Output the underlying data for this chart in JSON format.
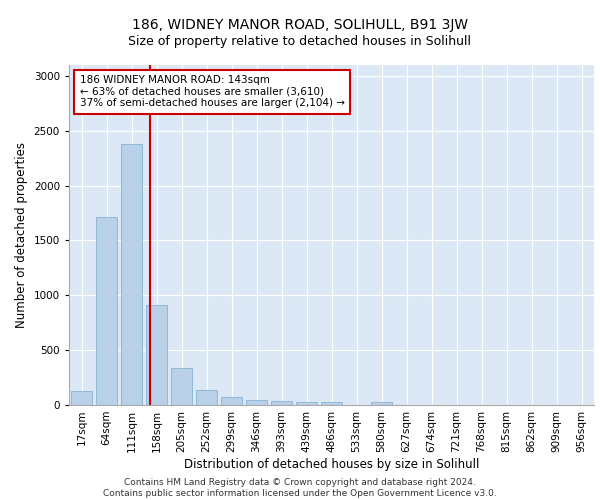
{
  "title1": "186, WIDNEY MANOR ROAD, SOLIHULL, B91 3JW",
  "title2": "Size of property relative to detached houses in Solihull",
  "xlabel": "Distribution of detached houses by size in Solihull",
  "ylabel": "Number of detached properties",
  "bar_labels": [
    "17sqm",
    "64sqm",
    "111sqm",
    "158sqm",
    "205sqm",
    "252sqm",
    "299sqm",
    "346sqm",
    "393sqm",
    "439sqm",
    "486sqm",
    "533sqm",
    "580sqm",
    "627sqm",
    "674sqm",
    "721sqm",
    "768sqm",
    "815sqm",
    "862sqm",
    "909sqm",
    "956sqm"
  ],
  "bar_values": [
    130,
    1710,
    2380,
    910,
    340,
    140,
    75,
    50,
    35,
    25,
    30,
    0,
    30,
    0,
    0,
    0,
    0,
    0,
    0,
    0,
    0
  ],
  "bar_color": "#b8d0e8",
  "bar_edgecolor": "#7aaacf",
  "vline_color": "#cc0000",
  "vline_x_idx": 2.72,
  "annotation_text": "186 WIDNEY MANOR ROAD: 143sqm\n← 63% of detached houses are smaller (3,610)\n37% of semi-detached houses are larger (2,104) →",
  "annotation_box_edgecolor": "#cc0000",
  "annotation_box_facecolor": "#ffffff",
  "ylim": [
    0,
    3100
  ],
  "yticks": [
    0,
    500,
    1000,
    1500,
    2000,
    2500,
    3000
  ],
  "background_color": "#dce8f5",
  "grid_color": "#ffffff",
  "footer": "Contains HM Land Registry data © Crown copyright and database right 2024.\nContains public sector information licensed under the Open Government Licence v3.0.",
  "title1_fontsize": 10,
  "title2_fontsize": 9,
  "xlabel_fontsize": 8.5,
  "ylabel_fontsize": 8.5,
  "tick_fontsize": 7.5,
  "annotation_fontsize": 7.5,
  "footer_fontsize": 6.5
}
